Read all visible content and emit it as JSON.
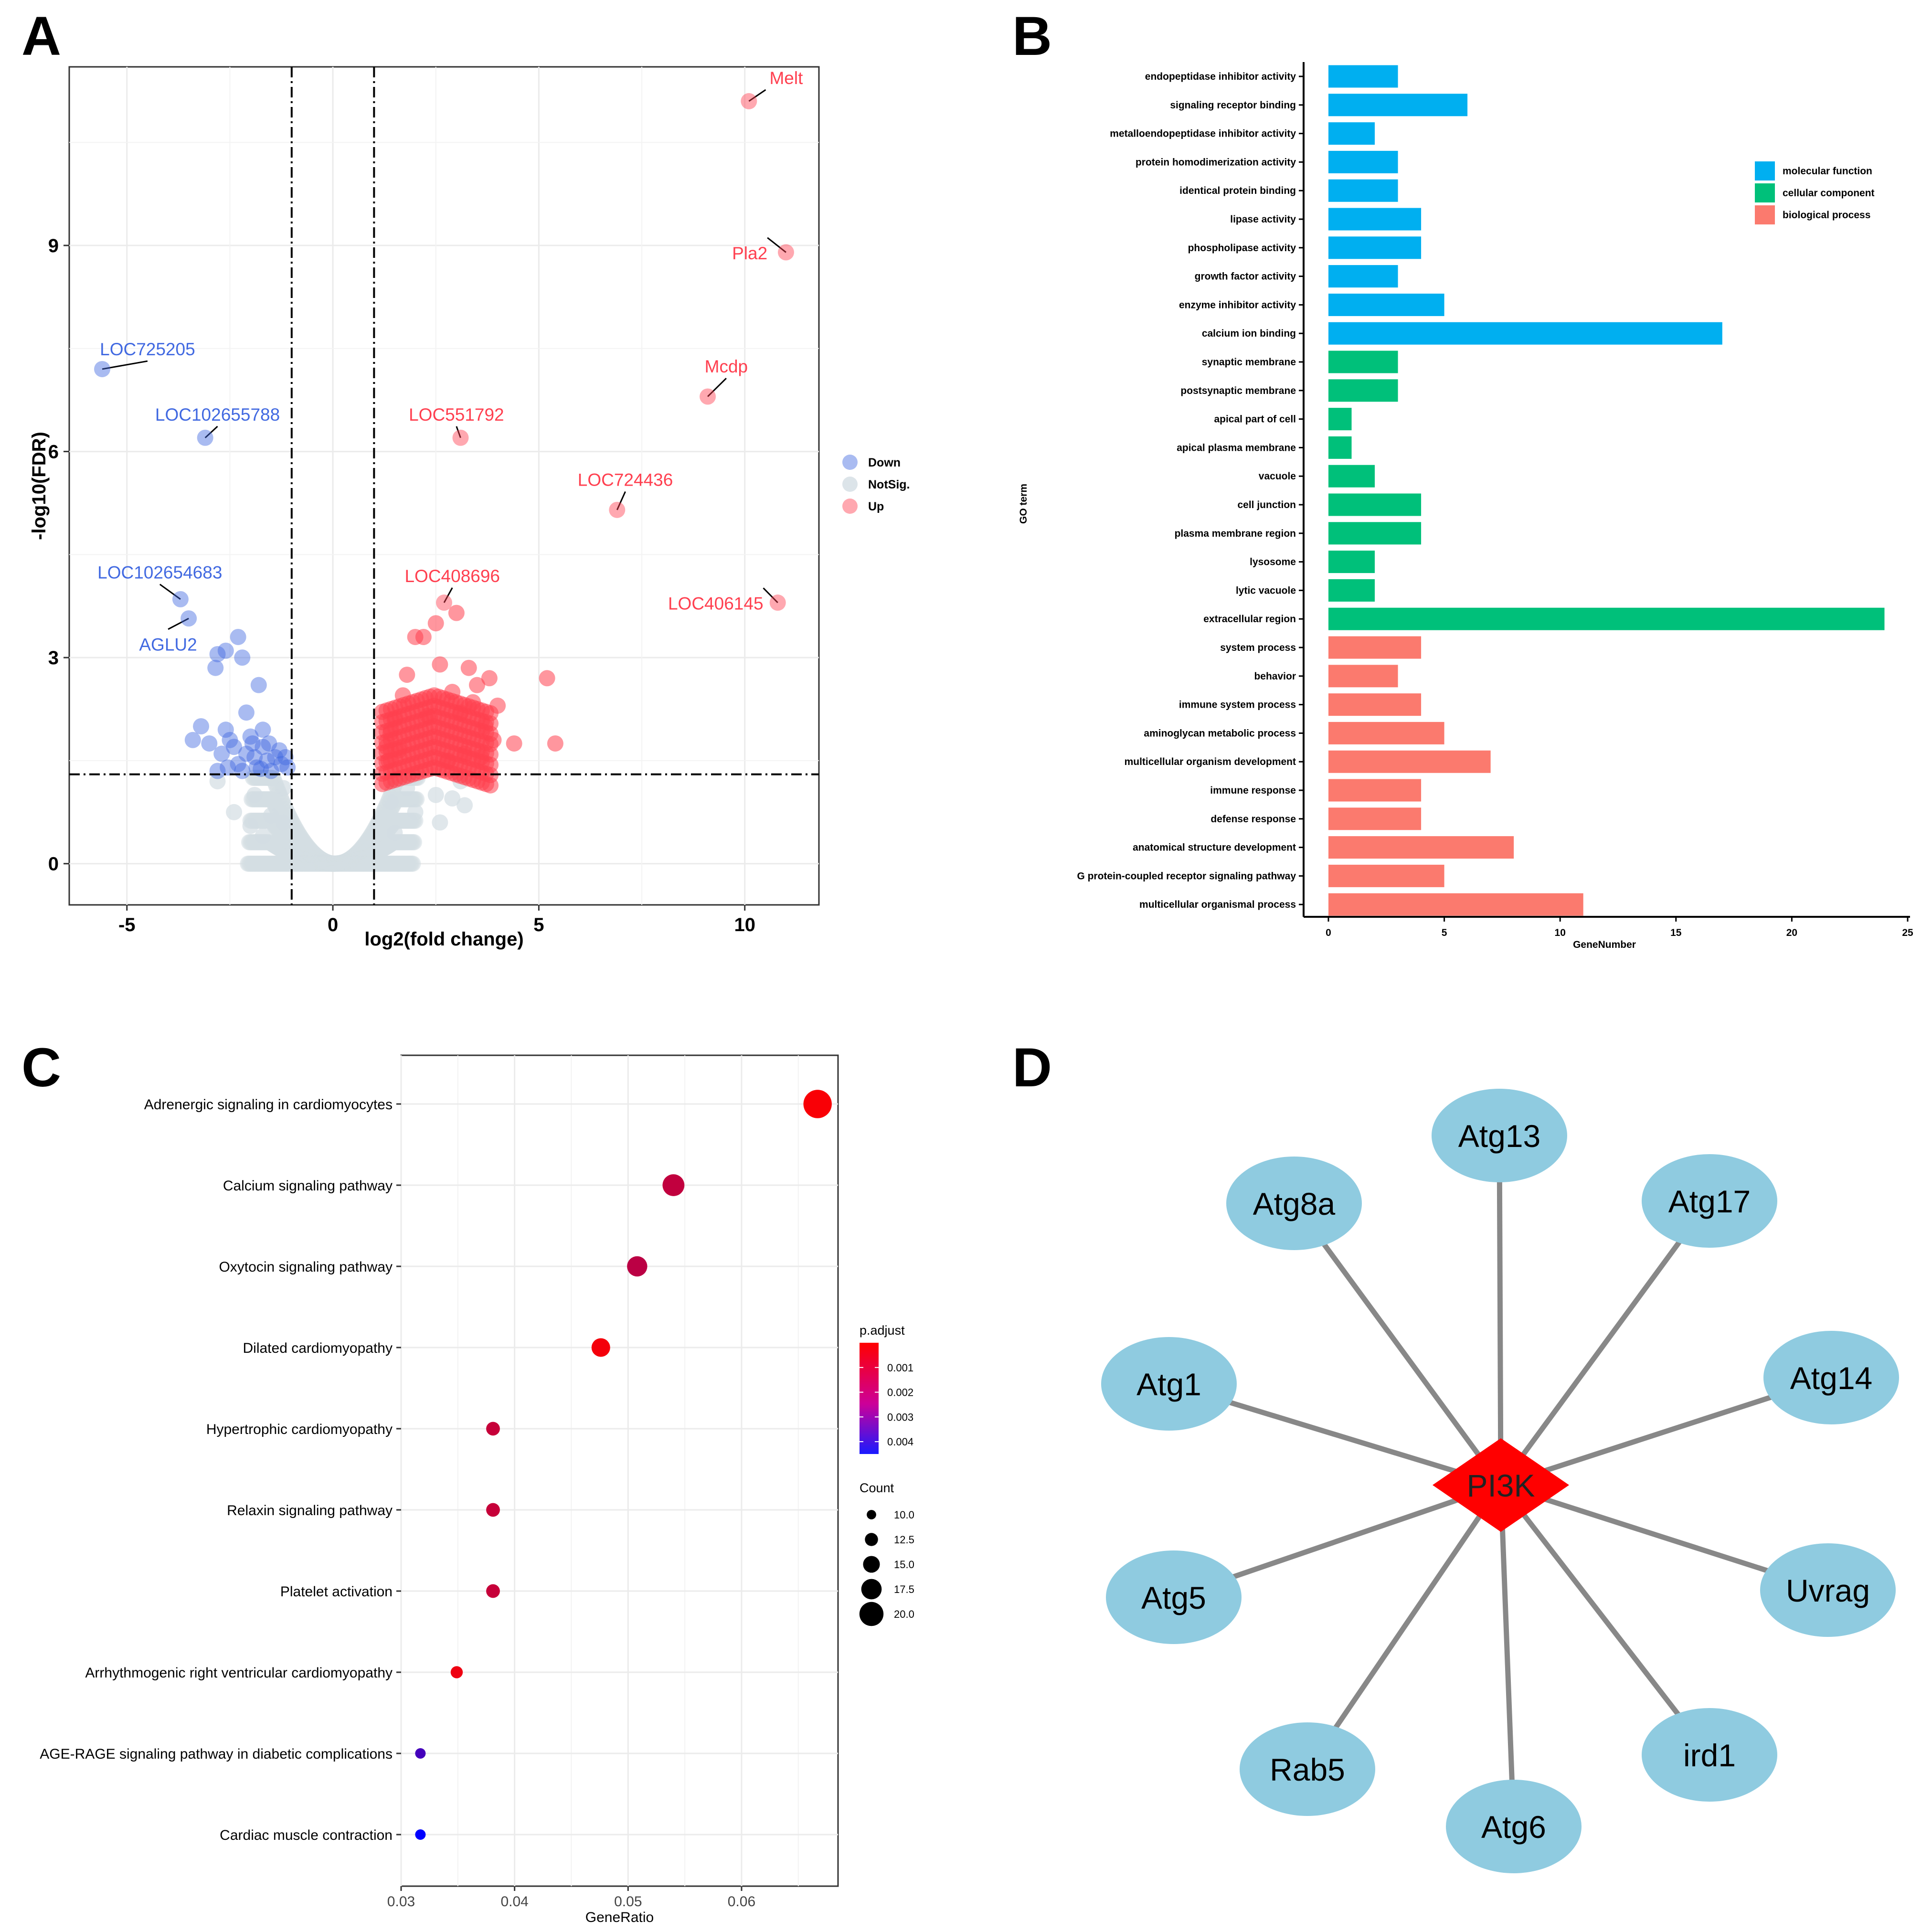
{
  "panel_labels": {
    "A": "A",
    "B": "B",
    "C": "C",
    "D": "D"
  },
  "colors": {
    "down": "#4169e1",
    "notsig": "#d3dde3",
    "up": "#ff3f4f",
    "mf": "#00aff0",
    "cc": "#00c07a",
    "bp": "#fb7a6e",
    "node": "#8fcbe0",
    "hub": "#ff0000",
    "edge": "#888888"
  },
  "chart_data": [
    {
      "panel": "A",
      "type": "scatter",
      "xlabel": "log2(fold change)",
      "ylabel": "-log10(FDR)",
      "xlim": [
        -6.4,
        11.8
      ],
      "ylim": [
        -0.6,
        11.6
      ],
      "xticks": [
        -5,
        0,
        5,
        10
      ],
      "yticks": [
        0,
        3,
        6,
        9
      ],
      "vlines": [
        -1,
        1
      ],
      "hline": 1.3,
      "legend": [
        {
          "key": "down",
          "label": "Down"
        },
        {
          "key": "notsig",
          "label": "NotSig."
        },
        {
          "key": "up",
          "label": "Up"
        }
      ],
      "labeled_points": [
        {
          "label": "Melt",
          "x": 10.1,
          "y": 11.1,
          "group": "up"
        },
        {
          "label": "Pla2",
          "x": 11.0,
          "y": 8.9,
          "group": "up"
        },
        {
          "label": "Mcdp",
          "x": 9.1,
          "y": 6.8,
          "group": "up"
        },
        {
          "label": "LOC551792",
          "x": 3.1,
          "y": 6.2,
          "group": "up"
        },
        {
          "label": "LOC724436",
          "x": 6.9,
          "y": 5.15,
          "group": "up"
        },
        {
          "label": "LOC408696",
          "x": 2.7,
          "y": 3.8,
          "group": "up"
        },
        {
          "label": "LOC406145",
          "x": 10.8,
          "y": 3.8,
          "group": "up"
        },
        {
          "label": "LOC725205",
          "x": -5.6,
          "y": 7.2,
          "group": "down"
        },
        {
          "label": "LOC102655788",
          "x": -3.1,
          "y": 6.2,
          "group": "down"
        },
        {
          "label": "LOC102654683",
          "x": -3.7,
          "y": 3.85,
          "group": "down"
        },
        {
          "label": "AGLU2",
          "x": -3.5,
          "y": 3.57,
          "group": "down"
        }
      ],
      "down_points": [
        [
          -2.3,
          3.3
        ],
        [
          -2.6,
          3.1
        ],
        [
          -2.85,
          2.85
        ],
        [
          -2.8,
          3.05
        ],
        [
          -2.2,
          3.0
        ],
        [
          -1.8,
          2.6
        ],
        [
          -3.2,
          2.0
        ],
        [
          -3.4,
          1.8
        ],
        [
          -3.0,
          1.75
        ],
        [
          -2.6,
          1.95
        ],
        [
          -2.5,
          1.8
        ],
        [
          -2.1,
          2.2
        ],
        [
          -1.7,
          1.95
        ],
        [
          -2.7,
          1.6
        ],
        [
          -2.4,
          1.7
        ],
        [
          -1.95,
          1.75
        ],
        [
          -1.6,
          1.5
        ],
        [
          -1.4,
          1.55
        ],
        [
          -2.1,
          1.6
        ],
        [
          -2.3,
          1.45
        ],
        [
          -1.85,
          1.4
        ],
        [
          -1.5,
          1.35
        ],
        [
          -1.25,
          1.45
        ],
        [
          -1.15,
          1.55
        ],
        [
          -1.9,
          1.55
        ],
        [
          -2.55,
          1.4
        ],
        [
          -1.3,
          1.65
        ],
        [
          -2.0,
          1.85
        ],
        [
          -1.7,
          1.7
        ],
        [
          -2.8,
          1.35
        ],
        [
          -1.1,
          1.4
        ],
        [
          -1.55,
          1.75
        ],
        [
          -2.2,
          1.35
        ],
        [
          -1.75,
          1.38
        ]
      ],
      "up_points": [
        [
          5.2,
          2.7
        ],
        [
          4.4,
          1.75
        ],
        [
          5.4,
          1.75
        ],
        [
          3.8,
          2.7
        ],
        [
          3.5,
          2.6
        ],
        [
          3.7,
          2.0
        ],
        [
          3.9,
          1.8
        ],
        [
          3.3,
          2.85
        ],
        [
          3.0,
          3.65
        ],
        [
          2.5,
          3.5
        ],
        [
          2.2,
          3.3
        ],
        [
          2.0,
          3.3
        ],
        [
          1.8,
          2.75
        ],
        [
          1.7,
          2.45
        ],
        [
          1.5,
          2.1
        ],
        [
          1.4,
          1.9
        ],
        [
          1.3,
          1.7
        ],
        [
          1.35,
          1.5
        ],
        [
          1.6,
          1.65
        ],
        [
          2.6,
          2.9
        ],
        [
          2.9,
          2.5
        ],
        [
          3.1,
          2.2
        ],
        [
          3.4,
          2.35
        ],
        [
          3.6,
          1.55
        ],
        [
          3.2,
          1.6
        ],
        [
          2.3,
          2.15
        ],
        [
          2.8,
          1.5
        ],
        [
          4.0,
          2.3
        ]
      ],
      "notsig_points": [
        [
          -2.4,
          0.75
        ],
        [
          -1.9,
          1.0
        ],
        [
          -2.0,
          0.55
        ],
        [
          -1.5,
          0.7
        ],
        [
          -2.8,
          1.2
        ],
        [
          -1.2,
          1.1
        ],
        [
          -1.7,
          0.4
        ],
        [
          -1.2,
          0.6
        ],
        [
          1.4,
          0.9
        ],
        [
          1.8,
          1.1
        ],
        [
          2.5,
          1.0
        ],
        [
          3.2,
          0.85
        ],
        [
          3.1,
          1.2
        ],
        [
          2.6,
          0.6
        ],
        [
          1.5,
          0.45
        ],
        [
          2.0,
          0.75
        ],
        [
          2.9,
          0.95
        ]
      ]
    },
    {
      "panel": "B",
      "type": "bar",
      "orientation": "horizontal",
      "xlabel": "GeneNumber",
      "ylabel": "GO term",
      "xlim": [
        0,
        25
      ],
      "xticks": [
        0,
        5,
        10,
        15,
        20,
        25
      ],
      "legend": [
        {
          "key": "mf",
          "label": "molecular function"
        },
        {
          "key": "cc",
          "label": "cellular component"
        },
        {
          "key": "bp",
          "label": "biological process"
        }
      ],
      "categories": [
        "endopeptidase inhibitor activity",
        "signaling receptor binding",
        "metalloendopeptidase inhibitor activity",
        "protein homodimerization activity",
        "identical protein binding",
        "lipase activity",
        "phospholipase activity",
        "growth factor activity",
        "enzyme inhibitor activity",
        "calcium ion binding",
        "synaptic membrane",
        "postsynaptic membrane",
        "apical part of cell",
        "apical plasma membrane",
        "vacuole",
        "cell junction",
        "plasma membrane region",
        "lysosome",
        "lytic vacuole",
        "extracellular region",
        "system process",
        "behavior",
        "immune system process",
        "aminoglycan metabolic process",
        "multicellular organism development",
        "immune response",
        "defense response",
        "anatomical structure development",
        "G protein-coupled receptor signaling pathway",
        "multicellular organismal process"
      ],
      "values": [
        3,
        6,
        2,
        3,
        3,
        4,
        4,
        3,
        5,
        17,
        3,
        3,
        1,
        1,
        2,
        4,
        4,
        2,
        2,
        24,
        4,
        3,
        4,
        5,
        7,
        4,
        4,
        8,
        5,
        11
      ],
      "groups": [
        "mf",
        "mf",
        "mf",
        "mf",
        "mf",
        "mf",
        "mf",
        "mf",
        "mf",
        "mf",
        "cc",
        "cc",
        "cc",
        "cc",
        "cc",
        "cc",
        "cc",
        "cc",
        "cc",
        "cc",
        "bp",
        "bp",
        "bp",
        "bp",
        "bp",
        "bp",
        "bp",
        "bp",
        "bp",
        "bp"
      ]
    },
    {
      "panel": "C",
      "type": "scatter",
      "subtype": "dot",
      "xlabel": "GeneRatio",
      "xlim": [
        0.03,
        0.0685
      ],
      "xticks": [
        0.03,
        0.04,
        0.05,
        0.06
      ],
      "xtick_labels": [
        "0.03",
        "0.04",
        "0.05",
        "0.06"
      ],
      "categories": [
        "Adrenergic signaling in cardiomyocytes",
        "Calcium signaling pathway",
        "Oxytocin signaling pathway",
        "Dilated cardiomyopathy",
        "Hypertrophic cardiomyopathy",
        "Relaxin signaling pathway",
        "Platelet activation",
        "Arrhythmogenic right ventricular cardiomyopathy",
        "AGE-RAGE signaling pathway in diabetic complications",
        "Cardiac muscle contraction"
      ],
      "x": [
        0.0667,
        0.054,
        0.0508,
        0.0476,
        0.0381,
        0.0381,
        0.0381,
        0.0349,
        0.0317,
        0.0317
      ],
      "count": [
        21,
        17,
        16,
        15,
        12,
        12,
        12,
        11,
        10,
        10
      ],
      "p_adjust": [
        0.0001,
        0.0011,
        0.0012,
        0.0002,
        0.001,
        0.001,
        0.001,
        0.0003,
        0.0033,
        0.0045
      ],
      "color_legend_title": "p.adjust",
      "color_ticks": [
        0.001,
        0.002,
        0.003,
        0.004
      ],
      "color_tick_labels": [
        "0.001",
        "0.002",
        "0.003",
        "0.004"
      ],
      "color_range": [
        0.0,
        0.0045
      ],
      "size_legend_title": "Count",
      "size_values": [
        10.0,
        12.5,
        15.0,
        17.5,
        20.0
      ],
      "size_labels": [
        "10.0",
        "12.5",
        "15.0",
        "17.5",
        "20.0"
      ]
    }
  ],
  "network": {
    "hub": "PI3K",
    "nodes": [
      "Atg13",
      "Atg17",
      "Atg14",
      "Uvrag",
      "ird1",
      "Atg6",
      "Rab5",
      "Atg5",
      "Atg1",
      "Atg8a"
    ]
  }
}
